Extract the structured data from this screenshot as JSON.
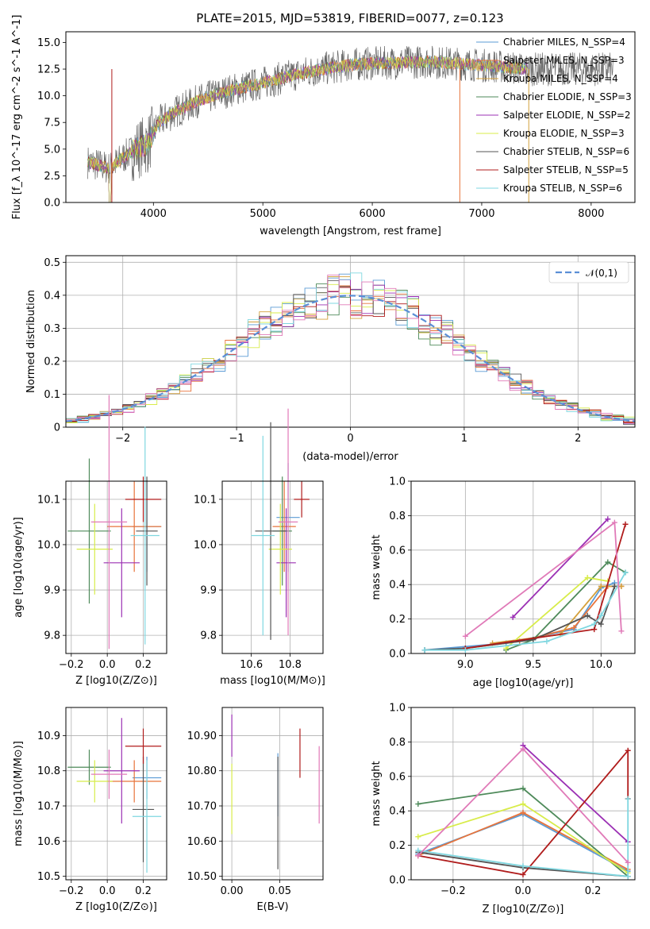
{
  "figure": {
    "title": "PLATE=2015, MJD=53819, FIBERID=0077, z=0.123"
  },
  "colors": {
    "Chabrier MILES": "#5b9bd5",
    "Salpeter MILES": "#e8743b",
    "Kroupa MILES": "#d4a03c",
    "Chabrier ELODIE": "#4e8a5a",
    "Salpeter ELODIE": "#9b30b4",
    "Kroupa ELODIE": "#d8ec4a",
    "Chabrier STELIB": "#555555",
    "Salpeter STELIB": "#b01c1c",
    "Kroupa STELIB": "#7fd7e0",
    "extra_pink": "#e07ab8",
    "normal_curve": "#5b8fd6"
  },
  "chart_data": [
    {
      "id": "spectrum",
      "type": "line",
      "title": "PLATE=2015, MJD=53819, FIBERID=0077, z=0.123",
      "xlabel": "wavelength [Angstrom, rest frame]",
      "ylabel": "Flux [f_λ 10^-17 erg cm^-2 s^-1 A^-1]",
      "xlim": [
        3200,
        8400
      ],
      "ylim": [
        0,
        16
      ],
      "xticks": [
        4000,
        5000,
        6000,
        7000,
        8000
      ],
      "yticks": [
        0.0,
        2.5,
        5.0,
        7.5,
        10.0,
        12.5,
        15.0
      ],
      "grid": false,
      "legend_position": "upper-right",
      "series": [
        {
          "name": "Chabrier MILES, N_SSP=4"
        },
        {
          "name": "Salpeter MILES, N_SSP=3"
        },
        {
          "name": "Kroupa MILES, N_SSP=4"
        },
        {
          "name": "Chabrier ELODIE, N_SSP=3"
        },
        {
          "name": "Salpeter ELODIE, N_SSP=2"
        },
        {
          "name": "Kroupa ELODIE, N_SSP=3"
        },
        {
          "name": "Chabrier STELIB, N_SSP=6"
        },
        {
          "name": "Salpeter STELIB, N_SSP=5"
        },
        {
          "name": "Kroupa STELIB, N_SSP=6"
        }
      ],
      "continuum": {
        "x": [
          3400,
          3600,
          3800,
          3950,
          4050,
          4200,
          4400,
          4700,
          5000,
          5300,
          5600,
          5900,
          6200,
          6500,
          6800,
          7100,
          7400
        ],
        "y": [
          3.8,
          3.2,
          4.8,
          5.5,
          7.5,
          8.5,
          9.5,
          10.5,
          11.2,
          12.0,
          12.6,
          13.0,
          13.1,
          13.2,
          13.0,
          12.8,
          12.5
        ]
      }
    },
    {
      "id": "residuals",
      "type": "histogram",
      "xlabel": "(data-model)/error",
      "ylabel": "Normed distribution",
      "xlim": [
        -2.5,
        2.5
      ],
      "ylim": [
        0,
        0.52
      ],
      "xticks": [
        -2,
        -1,
        0,
        1,
        2
      ],
      "yticks": [
        0.0,
        0.1,
        0.2,
        0.3,
        0.4,
        0.5
      ],
      "grid": true,
      "legend_position": "upper-right",
      "legend": [
        "𝒩(0,1)"
      ]
    },
    {
      "id": "age_vs_Z",
      "type": "errorbar",
      "xlabel": "Z [log10(Z/Z⊙)]",
      "ylabel": "age [log10(age/yr)]",
      "xlim": [
        -0.23,
        0.33
      ],
      "ylim": [
        9.76,
        10.14
      ],
      "xticks": [
        -0.2,
        0.0,
        0.2
      ],
      "yticks": [
        9.8,
        9.9,
        10.0,
        10.1
      ],
      "grid": true,
      "points": [
        {
          "s": "Chabrier MILES",
          "x": 0.22,
          "y": 10.04,
          "xerr": 0.08,
          "yerr": 0.1
        },
        {
          "s": "Salpeter MILES",
          "x": 0.15,
          "y": 10.04,
          "xerr": 0.15,
          "yerr": 0.1
        },
        {
          "s": "Chabrier ELODIE",
          "x": -0.1,
          "y": 10.03,
          "xerr": 0.12,
          "yerr": 0.16
        },
        {
          "s": "Salpeter ELODIE",
          "x": 0.08,
          "y": 9.96,
          "xerr": 0.1,
          "yerr": 0.12
        },
        {
          "s": "Kroupa ELODIE",
          "x": -0.07,
          "y": 9.99,
          "xerr": 0.1,
          "yerr": 0.1
        },
        {
          "s": "Chabrier STELIB",
          "x": 0.22,
          "y": 10.03,
          "xerr": 0.06,
          "yerr": 0.12
        },
        {
          "s": "Salpeter STELIB",
          "x": 0.2,
          "y": 10.1,
          "xerr": 0.1,
          "yerr": 0.05
        },
        {
          "s": "Kroupa STELIB",
          "x": 0.21,
          "y": 10.02,
          "xerr": 0.08,
          "yerr": 0.24
        },
        {
          "s": "extra_pink",
          "x": 0.01,
          "y": 10.05,
          "xerr": 0.1,
          "yerr": 0.28
        }
      ]
    },
    {
      "id": "age_vs_mass",
      "type": "errorbar",
      "xlabel": "mass [log10(M/M⊙)]",
      "ylabel": "",
      "xlim": [
        10.45,
        10.97
      ],
      "ylim": [
        9.76,
        10.14
      ],
      "xticks": [
        10.6,
        10.8
      ],
      "yticks": [
        9.8,
        9.9,
        10.0,
        10.1
      ],
      "grid": true,
      "points": [
        {
          "s": "Chabrier MILES",
          "x": 10.79,
          "y": 10.06,
          "xerr": 0.06,
          "yerr": 0.12
        },
        {
          "s": "Salpeter MILES",
          "x": 10.77,
          "y": 10.04,
          "xerr": 0.06,
          "yerr": 0.1
        },
        {
          "s": "Chabrier ELODIE",
          "x": 10.76,
          "y": 10.03,
          "xerr": 0.05,
          "yerr": 0.12
        },
        {
          "s": "Salpeter ELODIE",
          "x": 10.78,
          "y": 9.96,
          "xerr": 0.05,
          "yerr": 0.12
        },
        {
          "s": "Kroupa ELODIE",
          "x": 10.75,
          "y": 9.99,
          "xerr": 0.06,
          "yerr": 0.1
        },
        {
          "s": "Chabrier STELIB",
          "x": 10.7,
          "y": 10.03,
          "xerr": 0.08,
          "yerr": 0.24
        },
        {
          "s": "Salpeter STELIB",
          "x": 10.86,
          "y": 10.1,
          "xerr": 0.04,
          "yerr": 0.04
        },
        {
          "s": "Kroupa STELIB",
          "x": 10.66,
          "y": 10.02,
          "xerr": 0.06,
          "yerr": 0.22
        },
        {
          "s": "extra_pink",
          "x": 10.79,
          "y": 10.05,
          "xerr": 0.05,
          "yerr": 0.25
        }
      ]
    },
    {
      "id": "mass_weight_vs_age",
      "type": "line",
      "xlabel": "age [log10(age/yr)]",
      "ylabel": "mass weight",
      "xlim": [
        8.6,
        10.25
      ],
      "ylim": [
        0.0,
        1.0
      ],
      "xticks": [
        9.0,
        9.5,
        10.0
      ],
      "yticks": [
        0.0,
        0.2,
        0.4,
        0.6,
        0.8,
        1.0
      ],
      "grid": true,
      "series": [
        {
          "s": "Chabrier MILES",
          "x": [
            8.7,
            9.3,
            9.8,
            10.0,
            10.1
          ],
          "y": [
            0.02,
            0.06,
            0.14,
            0.38,
            0.41
          ]
        },
        {
          "s": "Salpeter MILES",
          "x": [
            9.0,
            9.4,
            9.8,
            10.05,
            10.15
          ],
          "y": [
            0.03,
            0.07,
            0.15,
            0.39,
            0.39
          ]
        },
        {
          "s": "Kroupa MILES",
          "x": [
            9.2,
            9.7,
            10.0,
            10.15
          ],
          "y": [
            0.06,
            0.11,
            0.39,
            0.39
          ]
        },
        {
          "s": "Chabrier ELODIE",
          "x": [
            9.3,
            9.5,
            10.05,
            10.18
          ],
          "y": [
            0.02,
            0.08,
            0.53,
            0.47
          ]
        },
        {
          "s": "Salpeter ELODIE",
          "x": [
            9.35,
            10.05
          ],
          "y": [
            0.21,
            0.78
          ]
        },
        {
          "s": "Kroupa ELODIE",
          "x": [
            9.3,
            9.9,
            10.05
          ],
          "y": [
            0.03,
            0.44,
            0.42
          ]
        },
        {
          "s": "Chabrier STELIB",
          "x": [
            8.7,
            9.0,
            9.5,
            9.9,
            10.0,
            10.1
          ],
          "y": [
            0.02,
            0.03,
            0.08,
            0.22,
            0.17,
            0.39
          ]
        },
        {
          "s": "Salpeter STELIB",
          "x": [
            9.0,
            9.95,
            10.18
          ],
          "y": [
            0.03,
            0.14,
            0.75
          ]
        },
        {
          "s": "Kroupa STELIB",
          "x": [
            8.7,
            9.0,
            9.6,
            9.95,
            10.0,
            10.18
          ],
          "y": [
            0.02,
            0.02,
            0.07,
            0.17,
            0.22,
            0.47
          ]
        },
        {
          "s": "extra_pink",
          "x": [
            9.0,
            10.1,
            10.15
          ],
          "y": [
            0.1,
            0.76,
            0.13
          ]
        }
      ]
    },
    {
      "id": "mass_vs_Z",
      "type": "errorbar",
      "xlabel": "Z [log10(Z/Z⊙)]",
      "ylabel": "mass [log10(M/M⊙)]",
      "xlim": [
        -0.23,
        0.33
      ],
      "ylim": [
        10.49,
        10.98
      ],
      "xticks": [
        -0.2,
        0.0,
        0.2
      ],
      "yticks": [
        10.5,
        10.6,
        10.7,
        10.8,
        10.9
      ],
      "grid": true,
      "points": [
        {
          "s": "Chabrier MILES",
          "x": 0.22,
          "y": 10.78,
          "xerr": 0.08,
          "yerr": 0.06
        },
        {
          "s": "Salpeter MILES",
          "x": 0.15,
          "y": 10.77,
          "xerr": 0.15,
          "yerr": 0.06
        },
        {
          "s": "Chabrier ELODIE",
          "x": -0.1,
          "y": 10.81,
          "xerr": 0.12,
          "yerr": 0.05
        },
        {
          "s": "Salpeter ELODIE",
          "x": 0.08,
          "y": 10.8,
          "xerr": 0.1,
          "yerr": 0.15
        },
        {
          "s": "Kroupa ELODIE",
          "x": -0.07,
          "y": 10.77,
          "xerr": 0.1,
          "yerr": 0.06
        },
        {
          "s": "Chabrier STELIB",
          "x": 0.2,
          "y": 10.69,
          "xerr": 0.06,
          "yerr": 0.15
        },
        {
          "s": "Salpeter STELIB",
          "x": 0.2,
          "y": 10.87,
          "xerr": 0.1,
          "yerr": 0.05
        },
        {
          "s": "Kroupa STELIB",
          "x": 0.22,
          "y": 10.67,
          "xerr": 0.08,
          "yerr": 0.16
        },
        {
          "s": "extra_pink",
          "x": 0.01,
          "y": 10.79,
          "xerr": 0.1,
          "yerr": 0.07
        }
      ]
    },
    {
      "id": "mass_vs_EBV",
      "type": "errorbar",
      "xlabel": "E(B-V)",
      "ylabel": "",
      "xlim": [
        -0.01,
        0.095
      ],
      "ylim": [
        10.49,
        10.98
      ],
      "xticks": [
        0.0,
        0.05
      ],
      "yticks": [
        10.5,
        10.6,
        10.7,
        10.8,
        10.9
      ],
      "grid": true,
      "points": [
        {
          "s": "Chabrier MILES",
          "x": 0.048,
          "y": 10.76,
          "xerr": 0.0,
          "yerr": 0.09
        },
        {
          "s": "Salpeter ELODIE",
          "x": 0.0,
          "y": 10.9,
          "xerr": 0.0,
          "yerr": 0.06
        },
        {
          "s": "Kroupa ELODIE",
          "x": 0.0,
          "y": 10.72,
          "xerr": 0.0,
          "yerr": 0.1
        },
        {
          "s": "Chabrier STELIB",
          "x": 0.048,
          "y": 10.68,
          "xerr": 0.0,
          "yerr": 0.16
        },
        {
          "s": "Salpeter STELIB",
          "x": 0.071,
          "y": 10.85,
          "xerr": 0.0,
          "yerr": 0.07
        },
        {
          "s": "extra_pink",
          "x": 0.091,
          "y": 10.76,
          "xerr": 0.0,
          "yerr": 0.11
        }
      ]
    },
    {
      "id": "mass_weight_vs_Z",
      "type": "line",
      "xlabel": "Z [log10(Z/Z⊙)]",
      "ylabel": "mass weight",
      "xlim": [
        -0.32,
        0.32
      ],
      "ylim": [
        0.0,
        1.0
      ],
      "xticks": [
        -0.2,
        0.0,
        0.2
      ],
      "yticks": [
        0.0,
        0.2,
        0.4,
        0.6,
        0.8,
        1.0
      ],
      "grid": true,
      "series": [
        {
          "s": "Chabrier MILES",
          "x": [
            -0.3,
            0.0,
            0.3
          ],
          "y": [
            0.15,
            0.38,
            0.05
          ]
        },
        {
          "s": "Salpeter MILES",
          "x": [
            -0.3,
            0.0,
            0.3
          ],
          "y": [
            0.14,
            0.39,
            0.06
          ]
        },
        {
          "s": "Chabrier ELODIE",
          "x": [
            -0.3,
            0.0,
            0.3
          ],
          "y": [
            0.44,
            0.53,
            0.02
          ]
        },
        {
          "s": "Salpeter ELODIE",
          "x": [
            0.0,
            0.3
          ],
          "y": [
            0.78,
            0.22
          ]
        },
        {
          "s": "Kroupa ELODIE",
          "x": [
            -0.3,
            0.0,
            0.3
          ],
          "y": [
            0.25,
            0.44,
            0.04
          ]
        },
        {
          "s": "Chabrier STELIB",
          "x": [
            -0.3,
            0.0,
            0.3
          ],
          "y": [
            0.16,
            0.07,
            0.02
          ]
        },
        {
          "s": "Salpeter STELIB",
          "x": [
            -0.3,
            0.0,
            0.3,
            0.3
          ],
          "y": [
            0.14,
            0.03,
            0.75,
            0.47
          ]
        },
        {
          "s": "Kroupa STELIB",
          "x": [
            -0.3,
            0.0,
            0.3,
            0.3
          ],
          "y": [
            0.17,
            0.08,
            0.02,
            0.47
          ]
        },
        {
          "s": "extra_pink",
          "x": [
            -0.3,
            0.0,
            0.3
          ],
          "y": [
            0.14,
            0.76,
            0.1
          ]
        }
      ]
    }
  ]
}
